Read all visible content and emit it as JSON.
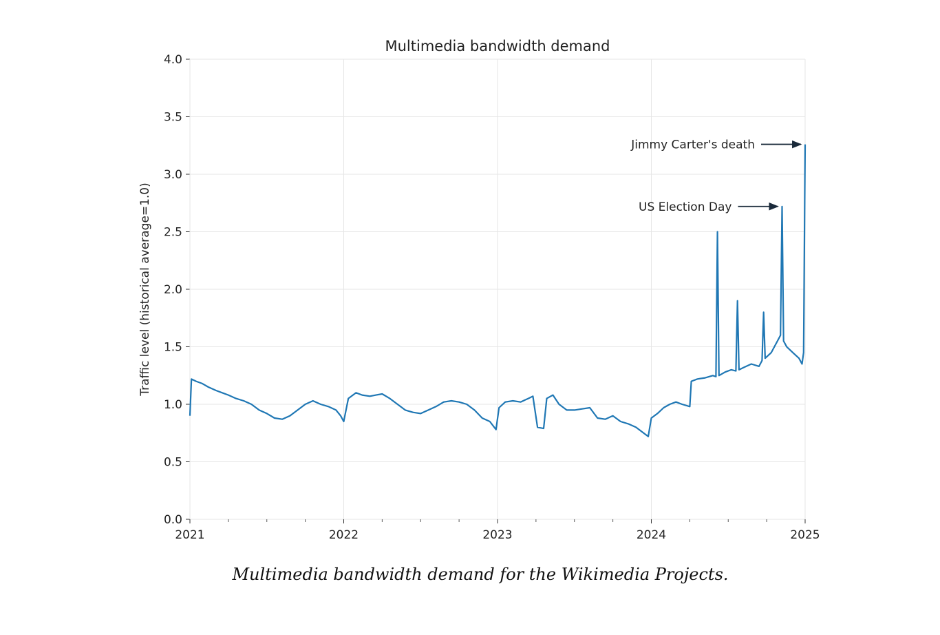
{
  "caption": "Multimedia bandwidth demand for the Wikimedia Projects.",
  "chart_data": {
    "type": "line",
    "title": "Multimedia bandwidth demand",
    "xlabel": "",
    "ylabel": "Traffic level (historical average=1.0)",
    "xlim": [
      2021,
      2025
    ],
    "ylim": [
      0,
      4
    ],
    "x_ticks": [
      "2021",
      "2022",
      "2023",
      "2024",
      "2025"
    ],
    "y_ticks": [
      "0.0",
      "0.5",
      "1.0",
      "1.5",
      "2.0",
      "2.5",
      "3.0",
      "3.5",
      "4.0"
    ],
    "grid": true,
    "line_color": "#1f77b4",
    "series": [
      {
        "name": "Traffic level",
        "x": [
          2021.0,
          2021.01,
          2021.04,
          2021.08,
          2021.12,
          2021.17,
          2021.21,
          2021.25,
          2021.3,
          2021.35,
          2021.4,
          2021.45,
          2021.5,
          2021.55,
          2021.6,
          2021.65,
          2021.7,
          2021.75,
          2021.8,
          2021.85,
          2021.9,
          2021.95,
          2021.98,
          2022.0,
          2022.03,
          2022.08,
          2022.12,
          2022.17,
          2022.21,
          2022.25,
          2022.3,
          2022.35,
          2022.4,
          2022.45,
          2022.5,
          2022.55,
          2022.6,
          2022.65,
          2022.7,
          2022.75,
          2022.8,
          2022.85,
          2022.9,
          2022.95,
          2022.99,
          2023.01,
          2023.05,
          2023.1,
          2023.15,
          2023.2,
          2023.23,
          2023.26,
          2023.3,
          2023.32,
          2023.36,
          2023.4,
          2023.45,
          2023.5,
          2023.55,
          2023.6,
          2023.65,
          2023.7,
          2023.75,
          2023.8,
          2023.85,
          2023.9,
          2023.95,
          2023.98,
          2024.0,
          2024.04,
          2024.08,
          2024.12,
          2024.16,
          2024.2,
          2024.25,
          2024.26,
          2024.3,
          2024.35,
          2024.4,
          2024.42,
          2024.43,
          2024.44,
          2024.48,
          2024.52,
          2024.55,
          2024.56,
          2024.57,
          2024.6,
          2024.65,
          2024.7,
          2024.72,
          2024.73,
          2024.74,
          2024.78,
          2024.8,
          2024.82,
          2024.84,
          2024.85,
          2024.86,
          2024.88,
          2024.92,
          2024.96,
          2024.98,
          2024.99,
          2025.0
        ],
        "values": [
          0.9,
          1.22,
          1.2,
          1.18,
          1.15,
          1.12,
          1.1,
          1.08,
          1.05,
          1.03,
          1.0,
          0.95,
          0.92,
          0.88,
          0.87,
          0.9,
          0.95,
          1.0,
          1.03,
          1.0,
          0.98,
          0.95,
          0.9,
          0.85,
          1.05,
          1.1,
          1.08,
          1.07,
          1.08,
          1.09,
          1.05,
          1.0,
          0.95,
          0.93,
          0.92,
          0.95,
          0.98,
          1.02,
          1.03,
          1.02,
          1.0,
          0.95,
          0.88,
          0.85,
          0.78,
          0.97,
          1.02,
          1.03,
          1.02,
          1.05,
          1.07,
          0.8,
          0.79,
          1.05,
          1.08,
          1.0,
          0.95,
          0.95,
          0.96,
          0.97,
          0.88,
          0.87,
          0.9,
          0.85,
          0.83,
          0.8,
          0.75,
          0.72,
          0.88,
          0.92,
          0.97,
          1.0,
          1.02,
          1.0,
          0.98,
          1.2,
          1.22,
          1.23,
          1.25,
          1.24,
          2.5,
          1.25,
          1.28,
          1.3,
          1.29,
          1.9,
          1.3,
          1.32,
          1.35,
          1.33,
          1.38,
          1.8,
          1.4,
          1.45,
          1.5,
          1.55,
          1.6,
          2.72,
          1.55,
          1.5,
          1.45,
          1.4,
          1.35,
          1.45,
          3.26
        ]
      }
    ],
    "annotations": [
      {
        "text": "Jimmy Carter's death",
        "x": 2025.0,
        "y": 3.26
      },
      {
        "text": "US Election Day",
        "x": 2024.85,
        "y": 2.72
      }
    ]
  }
}
